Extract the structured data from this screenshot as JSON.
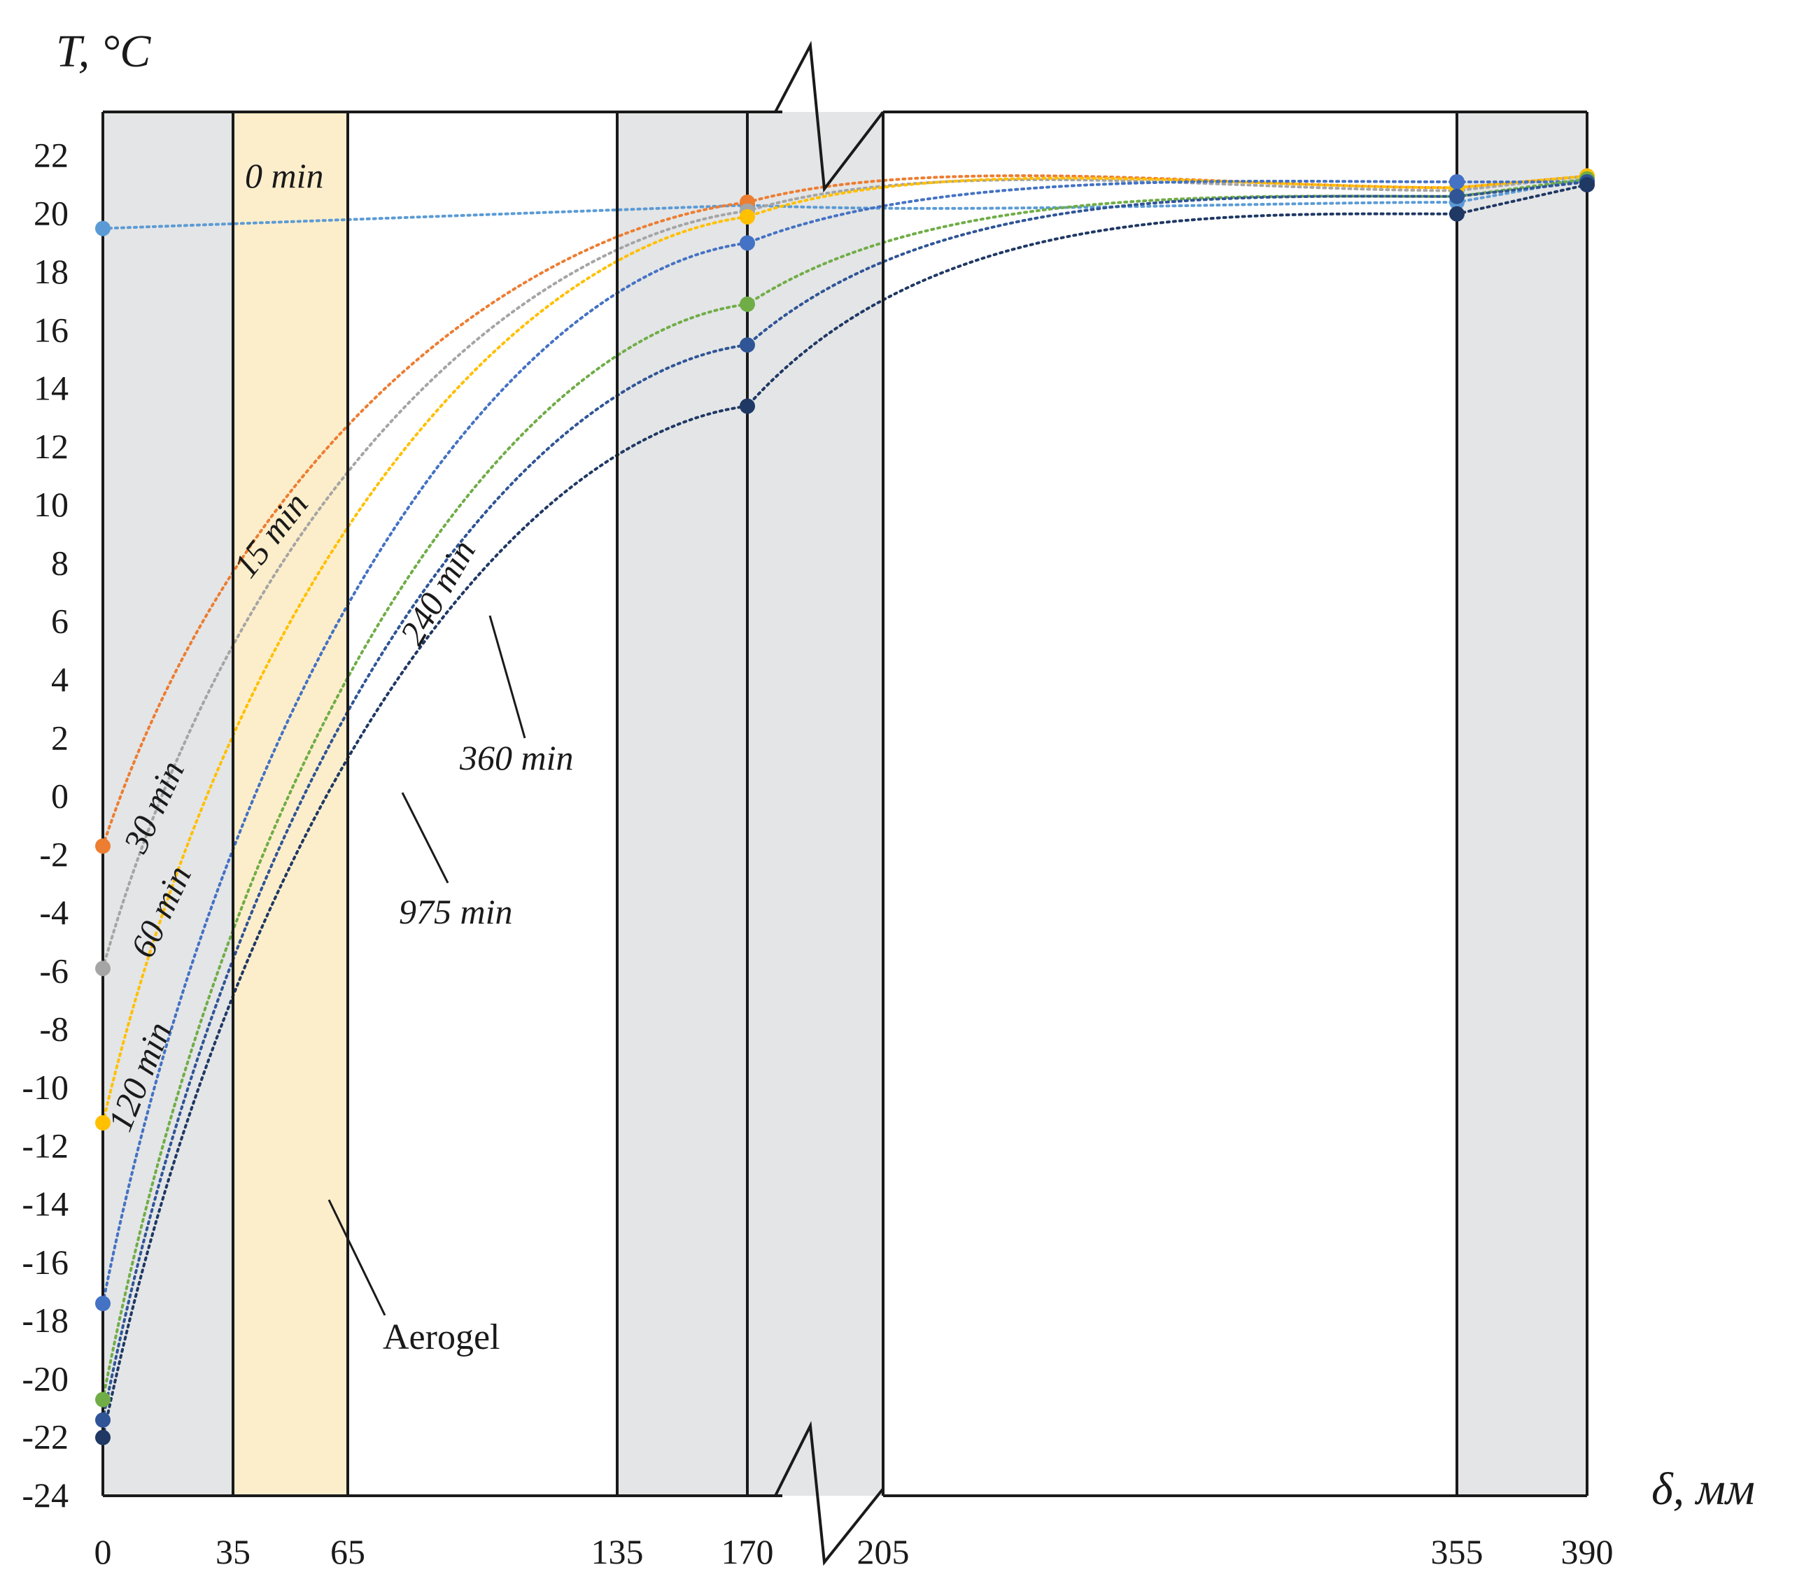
{
  "chart_data": {
    "type": "line",
    "xlabel": "δ, мм",
    "ylabel": "T, °C",
    "ylim": [
      -24,
      22
    ],
    "y_ticks": [
      22,
      20,
      18,
      16,
      14,
      12,
      10,
      8,
      6,
      4,
      2,
      0,
      -2,
      -4,
      -6,
      -8,
      -10,
      -12,
      -14,
      -16,
      -18,
      -20,
      -22,
      -24
    ],
    "x_ticks": [
      0,
      35,
      65,
      135,
      170,
      205,
      355,
      390
    ],
    "axis_break": {
      "from": 170,
      "to": 205
    },
    "layers": [
      {
        "from": 0,
        "to": 35,
        "fill": "#e4e5e6"
      },
      {
        "from": 35,
        "to": 65,
        "fill": "#fdeecb"
      },
      {
        "from": 65,
        "to": 135,
        "fill": "#ffffff"
      },
      {
        "from": 135,
        "to": 170,
        "fill": "#e4e5e6"
      },
      {
        "from": 170,
        "to": 205,
        "fill": "#e4e5e6"
      },
      {
        "from": 205,
        "to": 355,
        "fill": "#ffffff"
      },
      {
        "from": 355,
        "to": 390,
        "fill": "#e4e5e6"
      }
    ],
    "aerogel_label": "Aerogel",
    "series": [
      {
        "name": "0 min",
        "color": "#5b9bd5",
        "points": [
          [
            0,
            19.5
          ],
          [
            170,
            20.3
          ],
          [
            355,
            20.4
          ],
          [
            390,
            21.2
          ]
        ]
      },
      {
        "name": "15 min",
        "color": "#ed7d31",
        "points": [
          [
            0,
            -1.7
          ],
          [
            170,
            20.4
          ],
          [
            355,
            20.9
          ],
          [
            390,
            21.3
          ]
        ]
      },
      {
        "name": "30 min",
        "color": "#a5a5a5",
        "points": [
          [
            0,
            -5.9
          ],
          [
            170,
            20.1
          ],
          [
            355,
            20.8
          ],
          [
            390,
            21.3
          ]
        ]
      },
      {
        "name": "60 min",
        "color": "#ffc000",
        "points": [
          [
            0,
            -11.2
          ],
          [
            170,
            19.9
          ],
          [
            355,
            20.9
          ],
          [
            390,
            21.3
          ]
        ]
      },
      {
        "name": "120 min",
        "color": "#4472c4",
        "points": [
          [
            0,
            -17.4
          ],
          [
            170,
            19.0
          ],
          [
            355,
            21.1
          ],
          [
            390,
            21.1
          ]
        ]
      },
      {
        "name": "240 min",
        "color": "#70ad47",
        "points": [
          [
            0,
            -20.7
          ],
          [
            170,
            16.9
          ],
          [
            355,
            20.6
          ],
          [
            390,
            21.2
          ]
        ]
      },
      {
        "name": "360 min",
        "color": "#2f5597",
        "points": [
          [
            0,
            -21.4
          ],
          [
            170,
            15.5
          ],
          [
            355,
            20.6
          ],
          [
            390,
            21.1
          ]
        ]
      },
      {
        "name": "975 min",
        "color": "#1f3864",
        "points": [
          [
            0,
            -22.0
          ],
          [
            170,
            13.4
          ],
          [
            355,
            20.0
          ],
          [
            390,
            21.0
          ]
        ]
      }
    ]
  }
}
